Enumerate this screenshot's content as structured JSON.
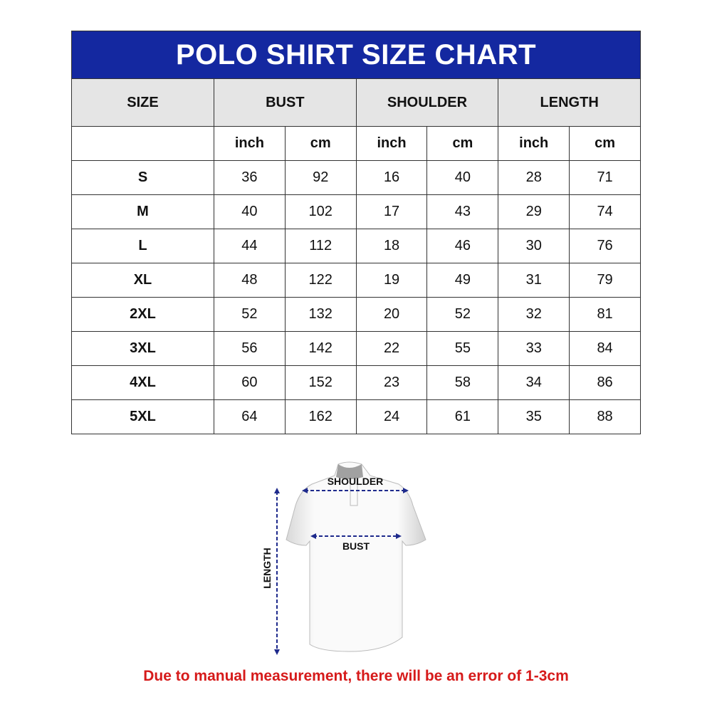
{
  "title": "POLO SHIRT SIZE CHART",
  "headers": [
    "SIZE",
    "BUST",
    "SHOULDER",
    "LENGTH"
  ],
  "units": [
    "inch",
    "cm",
    "inch",
    "cm",
    "inch",
    "cm"
  ],
  "rows": [
    [
      "S",
      "36",
      "92",
      "16",
      "40",
      "28",
      "71"
    ],
    [
      "M",
      "40",
      "102",
      "17",
      "43",
      "29",
      "74"
    ],
    [
      "L",
      "44",
      "112",
      "18",
      "46",
      "30",
      "76"
    ],
    [
      "XL",
      "48",
      "122",
      "19",
      "49",
      "31",
      "79"
    ],
    [
      "2XL",
      "52",
      "132",
      "20",
      "52",
      "32",
      "81"
    ],
    [
      "3XL",
      "56",
      "142",
      "22",
      "55",
      "33",
      "84"
    ],
    [
      "4XL",
      "60",
      "152",
      "23",
      "58",
      "34",
      "86"
    ],
    [
      "5XL",
      "64",
      "162",
      "24",
      "61",
      "35",
      "88"
    ]
  ],
  "diagram": {
    "shoulder": "SHOULDER",
    "bust": "BUST",
    "length": "LENGTH"
  },
  "note": "Due to manual measurement, there will be an error of 1-3cm",
  "colors": {
    "header_bg": "#1428a0",
    "note": "#d61a1a",
    "arrow": "#1e2a8c"
  }
}
